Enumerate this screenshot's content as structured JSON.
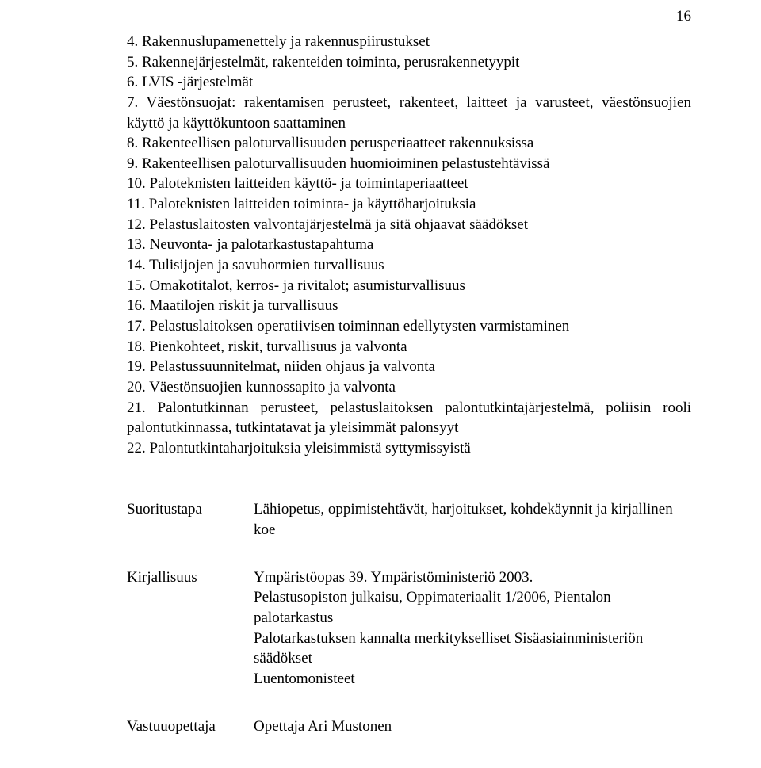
{
  "pageNumber": "16",
  "items": [
    "4. Rakennuslupamenettely ja rakennuspiirustukset",
    "5. Rakennejärjestelmät, rakenteiden toiminta, perusrakennetyypit",
    "6. LVIS -järjestelmät",
    "7. Väestönsuojat: rakentamisen perusteet, rakenteet, laitteet ja varusteet, väestönsuojien käyttö ja käyttökuntoon saattaminen",
    "8. Rakenteellisen paloturvallisuuden perusperiaatteet rakennuksissa",
    "9. Rakenteellisen paloturvallisuuden huomioiminen pelastustehtävissä",
    "10. Paloteknisten laitteiden käyttö- ja toimintaperiaatteet",
    "11. Paloteknisten laitteiden toiminta- ja käyttöharjoituksia",
    "12. Pelastuslaitosten valvontajärjestelmä ja sitä ohjaavat säädökset",
    "13. Neuvonta- ja palotarkastustapahtuma",
    "14. Tulisijojen ja savuhormien turvallisuus",
    "15. Omakotitalot, kerros- ja rivitalot; asumisturvallisuus",
    "16. Maatilojen riskit ja turvallisuus",
    "17. Pelastuslaitoksen operatiivisen toiminnan edellytysten varmistaminen",
    "18. Pienkohteet, riskit, turvallisuus ja valvonta",
    "19. Pelastussuunnitelmat, niiden ohjaus ja valvonta",
    "20. Väestönsuojien kunnossapito ja valvonta",
    "21. Palontutkinnan perusteet, pelastuslaitoksen palontutkintajärjestelmä, poliisin rooli palontutkinnassa, tutkintatavat ja yleisimmät palonsyyt",
    "22. Palontutkintaharjoituksia yleisimmistä syttymissyistä"
  ],
  "defs": {
    "suoritustapa": {
      "label": "Suoritustapa",
      "text": "Lähiopetus, oppimistehtävät, harjoitukset, kohdekäynnit ja kirjallinen koe"
    },
    "kirjallisuus": {
      "label": "Kirjallisuus",
      "lines": [
        "Ympäristöopas 39. Ympäristöministeriö 2003.",
        "Pelastusopiston julkaisu, Oppimateriaalit 1/2006, Pientalon palotarkastus",
        "Palotarkastuksen kannalta merkitykselliset Sisäasiainministeriön säädökset",
        "Luentomonisteet"
      ]
    },
    "vastuuopettaja": {
      "label": "Vastuuopettaja",
      "text": "Opettaja Ari Mustonen"
    }
  }
}
